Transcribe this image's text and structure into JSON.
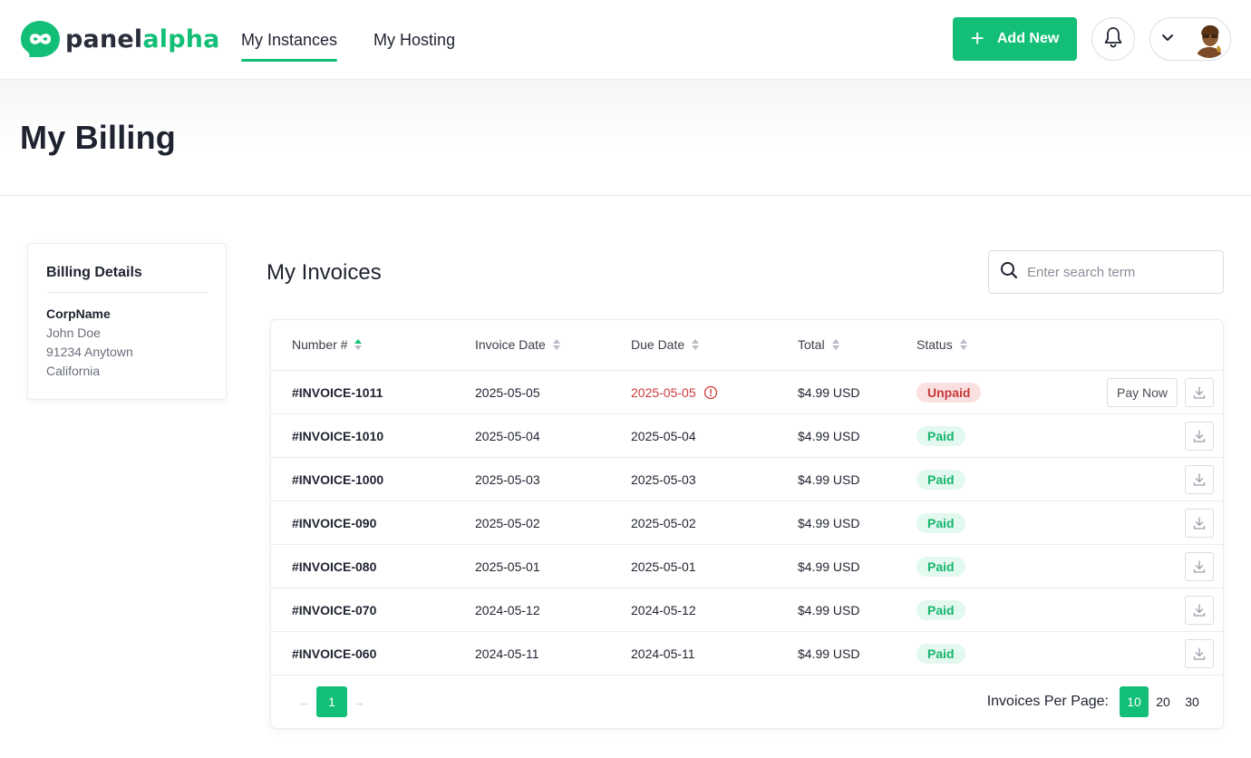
{
  "brand": {
    "part1": "panel",
    "part2": "alpha",
    "accent": "#13bf77"
  },
  "nav": [
    {
      "label": "My Instances",
      "active": true
    },
    {
      "label": "My Hosting",
      "active": false
    }
  ],
  "header_actions": {
    "add_new_label": "Add New",
    "bell_icon": "bell-icon",
    "user_chevron_icon": "chevron-down-icon"
  },
  "page": {
    "title": "My Billing"
  },
  "billing": {
    "title": "Billing Details",
    "company": "CorpName",
    "name": "John Doe",
    "city": "91234 Anytown",
    "state": "California"
  },
  "invoices": {
    "title": "My Invoices",
    "search_placeholder": "Enter search term",
    "columns": [
      "Number #",
      "Invoice Date",
      "Due Date",
      "Total",
      "Status"
    ],
    "pay_now_label": "Pay Now",
    "rows": [
      {
        "number": "#INVOICE-1011",
        "invoice_date": "2025-05-05",
        "due_date": "2025-05-05",
        "total": "$4.99 USD",
        "status": "Unpaid",
        "overdue": true
      },
      {
        "number": "#INVOICE-1010",
        "invoice_date": "2025-05-04",
        "due_date": "2025-05-04",
        "total": "$4.99 USD",
        "status": "Paid",
        "overdue": false
      },
      {
        "number": "#INVOICE-1000",
        "invoice_date": "2025-05-03",
        "due_date": "2025-05-03",
        "total": "$4.99 USD",
        "status": "Paid",
        "overdue": false
      },
      {
        "number": "#INVOICE-090",
        "invoice_date": "2025-05-02",
        "due_date": "2025-05-02",
        "total": "$4.99 USD",
        "status": "Paid",
        "overdue": false
      },
      {
        "number": "#INVOICE-080",
        "invoice_date": "2025-05-01",
        "due_date": "2025-05-01",
        "total": "$4.99 USD",
        "status": "Paid",
        "overdue": false
      },
      {
        "number": "#INVOICE-070",
        "invoice_date": "2024-05-12",
        "due_date": "2024-05-12",
        "total": "$4.99 USD",
        "status": "Paid",
        "overdue": false
      },
      {
        "number": "#INVOICE-060",
        "invoice_date": "2024-05-11",
        "due_date": "2024-05-11",
        "total": "$4.99 USD",
        "status": "Paid",
        "overdue": false
      }
    ],
    "pagination": {
      "prev": "←",
      "current": "1",
      "next": "→"
    },
    "per_page": {
      "label": "Invoices Per Page:",
      "options": [
        "10",
        "20",
        "30"
      ],
      "selected": "10"
    }
  }
}
